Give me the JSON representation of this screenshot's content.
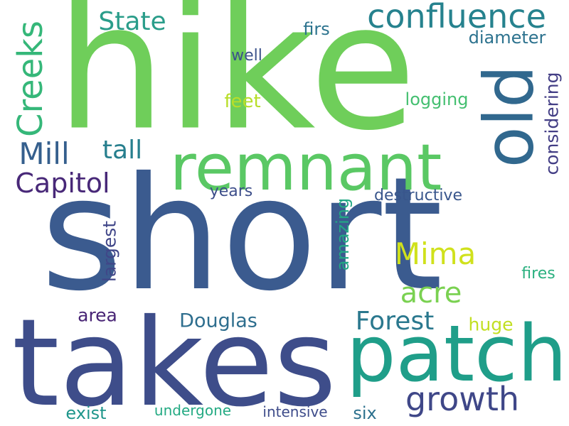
{
  "words": [
    {
      "text": "short",
      "color": "#3b5b8f"
    },
    {
      "text": "hike",
      "color": "#6fce5a"
    },
    {
      "text": "takes",
      "color": "#3e4d8a"
    },
    {
      "text": "patch",
      "color": "#1f9e89"
    },
    {
      "text": "remnant",
      "color": "#5ac864"
    },
    {
      "text": "old",
      "color": "#31688e"
    },
    {
      "text": "confluence",
      "color": "#26828e"
    },
    {
      "text": "growth",
      "color": "#3f4788"
    },
    {
      "text": "Creeks",
      "color": "#35b779"
    },
    {
      "text": "Mill",
      "color": "#355f8d"
    },
    {
      "text": "Capitol",
      "color": "#482878"
    },
    {
      "text": "State",
      "color": "#2a9d8a"
    },
    {
      "text": "Mima",
      "color": "#d0e11c"
    },
    {
      "text": "acre",
      "color": "#7ad151"
    },
    {
      "text": "Forest",
      "color": "#2a788e"
    },
    {
      "text": "tall",
      "color": "#277f8e"
    },
    {
      "text": "considering",
      "color": "#433e85"
    },
    {
      "text": "Douglas",
      "color": "#2e6e8e"
    },
    {
      "text": "diameter",
      "color": "#2c728e"
    },
    {
      "text": "firs",
      "color": "#2c738e"
    },
    {
      "text": "logging",
      "color": "#44bf70"
    },
    {
      "text": "feet",
      "color": "#b8de29"
    },
    {
      "text": "well",
      "color": "#3b528b"
    },
    {
      "text": "years",
      "color": "#3d4e8a"
    },
    {
      "text": "destructive",
      "color": "#39568c"
    },
    {
      "text": "largest",
      "color": "#404688"
    },
    {
      "text": "amazing",
      "color": "#22a884"
    },
    {
      "text": "area",
      "color": "#482475"
    },
    {
      "text": "huge",
      "color": "#c2df23"
    },
    {
      "text": "fires",
      "color": "#2ab07f"
    },
    {
      "text": "exist",
      "color": "#1f968b"
    },
    {
      "text": "undergone",
      "color": "#24aa83"
    },
    {
      "text": "intensive",
      "color": "#3e4c8a"
    },
    {
      "text": "six",
      "color": "#2d718e"
    }
  ]
}
